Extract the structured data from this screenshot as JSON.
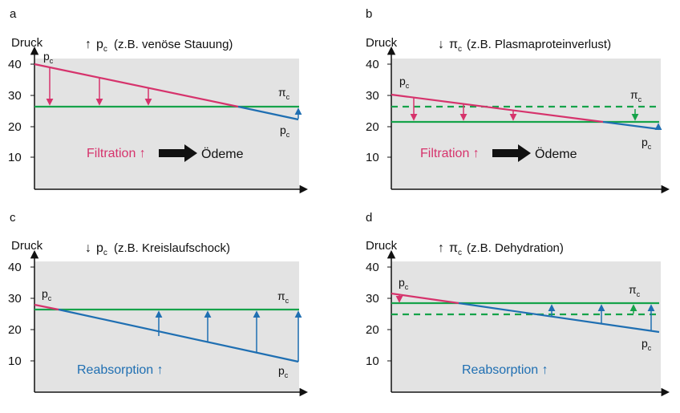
{
  "colors": {
    "pc": "#d6336c",
    "pc_dark": "#c2185b",
    "pi": "#16a34a",
    "pc_low": "#1f6fb2",
    "panel_bg": "#e3e3e3",
    "text": "#111111",
    "reabs": "#1f6fb2"
  },
  "common": {
    "ylabel": "Druck",
    "ticks": [
      "40",
      "30",
      "20",
      "10"
    ],
    "pc_label": "p",
    "pc_sub": "c",
    "pi_label": "π",
    "pi_sub": "c"
  },
  "panels": [
    {
      "letter": "a",
      "title_arrow": "↑",
      "title_sym": "p",
      "title_sub": "c",
      "title_text": "(z.B. venöse Stauung)",
      "effect_label": "Filtration ↑",
      "effect_color": "#d6336c",
      "result_label": "Ödeme"
    },
    {
      "letter": "b",
      "title_arrow": "↓",
      "title_sym": "π",
      "title_sub": "c",
      "title_text": "(z.B. Plasmaproteinverlust)",
      "effect_label": "Filtration ↑",
      "effect_color": "#d6336c",
      "result_label": "Ödeme"
    },
    {
      "letter": "c",
      "title_arrow": "↓",
      "title_sym": "p",
      "title_sub": "c",
      "title_text": "(z.B. Kreislaufschock)",
      "effect_label": "Reabsorption ↑",
      "effect_color": "#1f6fb2",
      "result_label": ""
    },
    {
      "letter": "d",
      "title_arrow": "↑",
      "title_sym": "π",
      "title_sub": "c",
      "title_text": "(z.B. Dehydration)",
      "effect_label": "Reabsorption ↑",
      "effect_color": "#1f6fb2",
      "result_label": ""
    }
  ]
}
